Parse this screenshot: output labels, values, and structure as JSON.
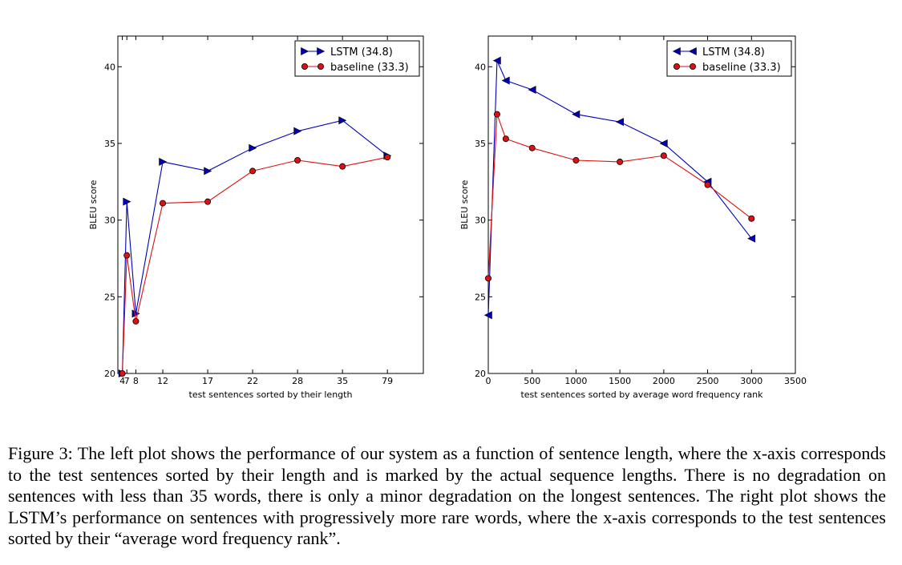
{
  "chart_data": [
    {
      "type": "line",
      "title": "",
      "xlabel": "test sentences sorted by their length",
      "ylabel": "BLEU score",
      "x_tick_labels": [
        "4",
        "7",
        "8",
        "12",
        "17",
        "22",
        "28",
        "35",
        "79"
      ],
      "x": [
        0.5,
        1.0,
        2.0,
        5.0,
        10.0,
        15.0,
        20.0,
        25.0,
        30.0
      ],
      "xlim": [
        0,
        34
      ],
      "ylim": [
        20,
        42
      ],
      "y_ticks": [
        20,
        25,
        30,
        35,
        40
      ],
      "legend_position": "top-right",
      "series": [
        {
          "name": "LSTM  (34.8)",
          "marker": "triangle-right",
          "color": "#0000bb",
          "values": [
            20.0,
            31.2,
            23.9,
            33.8,
            33.2,
            34.7,
            35.8,
            36.5,
            34.2
          ]
        },
        {
          "name": "baseline (33.3)",
          "marker": "circle",
          "color": "#dd1111",
          "values": [
            20.0,
            27.7,
            23.4,
            31.1,
            31.2,
            33.2,
            33.9,
            33.5,
            34.1
          ]
        }
      ]
    },
    {
      "type": "line",
      "title": "",
      "xlabel": "test sentences sorted by average word frequency rank",
      "ylabel": "BLEU score",
      "x_tick_labels": [
        "0",
        "500",
        "1000",
        "1500",
        "2000",
        "2500",
        "3000",
        "3500"
      ],
      "x_ticks": [
        0,
        500,
        1000,
        1500,
        2000,
        2500,
        3000,
        3500
      ],
      "xlim": [
        0,
        3500
      ],
      "ylim": [
        20,
        42
      ],
      "y_ticks": [
        20,
        25,
        30,
        35,
        40
      ],
      "legend_position": "top-right",
      "series": [
        {
          "name": "LSTM  (34.8)",
          "marker": "triangle-left",
          "color": "#0000bb",
          "x": [
            0,
            100,
            200,
            500,
            1000,
            1500,
            2000,
            2500,
            3000
          ],
          "values": [
            23.8,
            40.4,
            39.1,
            38.5,
            36.9,
            36.4,
            35.0,
            32.5,
            28.8
          ]
        },
        {
          "name": "baseline (33.3)",
          "marker": "circle",
          "color": "#dd1111",
          "x": [
            0,
            100,
            200,
            500,
            1000,
            1500,
            2000,
            2500,
            3000
          ],
          "values": [
            26.2,
            36.9,
            35.3,
            34.7,
            33.9,
            33.8,
            34.2,
            32.3,
            30.1
          ]
        }
      ]
    }
  ],
  "caption": {
    "label": "Figure 3:",
    "text": "The left plot shows the performance of our system as a function of sentence length, where the x-axis corresponds to the test sentences sorted by their length and is marked by the actual sequence lengths. There is no degradation on sentences with less than 35 words, there is only a minor degradation on the longest sentences. The right plot shows the LSTM’s performance on sentences with progressively more rare words, where the x-axis corresponds to the test sentences sorted by their “average word frequency rank”."
  }
}
